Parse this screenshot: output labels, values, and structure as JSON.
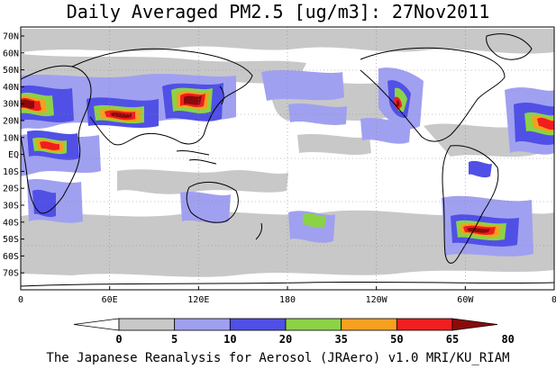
{
  "title": "Daily Averaged PM2.5 [ug/m3]: 27Nov2011",
  "footer": "The Japanese Reanalysis for Aerosol (JRAero) v1.0 MRI/KU_RIAM",
  "axes": {
    "lat_labels": [
      "70N",
      "60N",
      "50N",
      "40N",
      "30N",
      "20N",
      "10N",
      "EQ",
      "10S",
      "20S",
      "30S",
      "40S",
      "50S",
      "60S",
      "70S"
    ],
    "lon_labels": [
      "0",
      "60E",
      "120E",
      "180",
      "120W",
      "60W",
      "0"
    ]
  },
  "colorbar": {
    "ticks": [
      "0",
      "5",
      "10",
      "20",
      "35",
      "50",
      "65",
      "80"
    ],
    "colors": [
      "#ffffff",
      "#c8c8c8",
      "#a0a0f0",
      "#5050e6",
      "#8cd246",
      "#f5a01e",
      "#f01e1e",
      "#8c0a0a"
    ]
  },
  "colors": {
    "background": "#ffffff",
    "coast": "#000000",
    "grid": "#888888"
  }
}
